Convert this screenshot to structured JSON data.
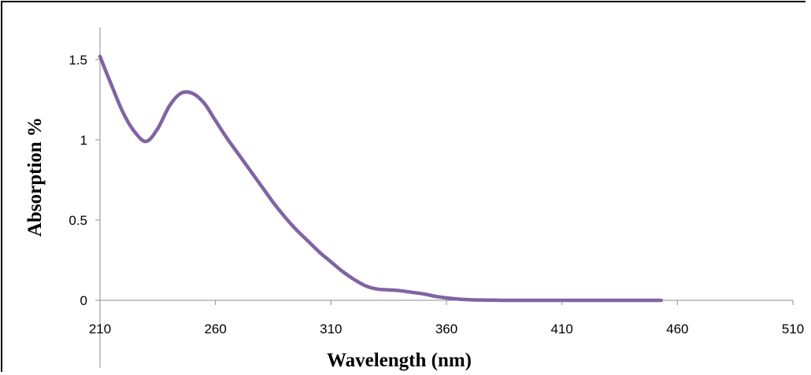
{
  "chart_data": {
    "type": "line",
    "title": "",
    "xlabel": "Wavelength (nm)",
    "ylabel": "Absorption %",
    "xlim": [
      210,
      510
    ],
    "ylim": [
      0,
      1.7
    ],
    "xticks": [
      210,
      260,
      310,
      360,
      410,
      460,
      510
    ],
    "xtick_labels": [
      "210",
      "260",
      "310",
      "360",
      "410",
      "460",
      "510"
    ],
    "yticks": [
      0,
      0.5,
      1,
      1.5
    ],
    "ytick_labels": [
      "0",
      "0.5",
      "1",
      "1.5"
    ],
    "grid": false,
    "legend": "none",
    "series": [
      {
        "color": "#8064a2",
        "x": [
          210,
          215,
          220,
          225,
          230,
          235,
          240,
          245,
          250,
          255,
          260,
          265,
          270,
          275,
          280,
          285,
          290,
          295,
          300,
          305,
          310,
          315,
          320,
          325,
          330,
          335,
          340,
          345,
          350,
          355,
          360,
          365,
          370,
          375,
          380,
          385,
          390,
          400,
          410,
          420,
          430,
          440,
          450,
          453
        ],
        "y": [
          1.52,
          1.34,
          1.17,
          1.05,
          0.99,
          1.07,
          1.21,
          1.29,
          1.29,
          1.23,
          1.12,
          1.01,
          0.91,
          0.81,
          0.71,
          0.61,
          0.52,
          0.44,
          0.37,
          0.3,
          0.24,
          0.18,
          0.13,
          0.09,
          0.07,
          0.065,
          0.06,
          0.05,
          0.04,
          0.025,
          0.015,
          0.008,
          0.004,
          0.002,
          0.001,
          0.0,
          0.0,
          0.0,
          0.0,
          0.0,
          0.0,
          0.0,
          0.0,
          0.0
        ]
      }
    ]
  }
}
